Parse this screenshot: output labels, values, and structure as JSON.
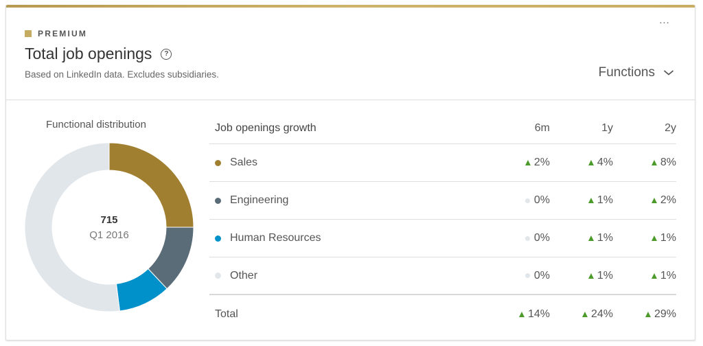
{
  "header": {
    "badge": "PREMIUM",
    "title": "Total job openings",
    "subtitle": "Based on LinkedIn data. Excludes subsidiaries.",
    "more_label": "…",
    "filter": {
      "selected": "Functions"
    }
  },
  "colors": {
    "premium_gold": "#c6ab63",
    "sales": "#a07f31",
    "engineering": "#5b6c79",
    "human_resources": "#0091ca",
    "other": "#e1e6eb",
    "growth_up": "#4c9a2a"
  },
  "distribution": {
    "title": "Functional distribution",
    "center_value": "715",
    "center_period": "Q1 2016"
  },
  "growth_table": {
    "title": "Job openings growth",
    "columns": [
      "6m",
      "1y",
      "2y"
    ],
    "rows": [
      {
        "label": "Sales",
        "dot_color": "#a07f31",
        "values": [
          {
            "text": "2%",
            "trend": "up"
          },
          {
            "text": "4%",
            "trend": "up"
          },
          {
            "text": "8%",
            "trend": "up"
          }
        ]
      },
      {
        "label": "Engineering",
        "dot_color": "#5b6c79",
        "values": [
          {
            "text": "0%",
            "trend": "flat"
          },
          {
            "text": "1%",
            "trend": "up"
          },
          {
            "text": "2%",
            "trend": "up"
          }
        ]
      },
      {
        "label": "Human Resources",
        "dot_color": "#0091ca",
        "values": [
          {
            "text": "0%",
            "trend": "flat"
          },
          {
            "text": "1%",
            "trend": "up"
          },
          {
            "text": "1%",
            "trend": "up"
          }
        ]
      },
      {
        "label": "Other",
        "dot_color": "#e1e6eb",
        "values": [
          {
            "text": "0%",
            "trend": "flat"
          },
          {
            "text": "1%",
            "trend": "up"
          },
          {
            "text": "1%",
            "trend": "up"
          }
        ]
      }
    ],
    "total": {
      "label": "Total",
      "values": [
        {
          "text": "14%",
          "trend": "up"
        },
        {
          "text": "24%",
          "trend": "up"
        },
        {
          "text": "29%",
          "trend": "up"
        }
      ]
    }
  },
  "chart_data": {
    "type": "pie",
    "title": "Functional distribution",
    "donut": true,
    "center_label": "715 Q1 2016",
    "categories": [
      "Sales",
      "Engineering",
      "Human Resources",
      "Other"
    ],
    "values": [
      25,
      13,
      10,
      52
    ],
    "units": "approx. percent of 715 openings",
    "colors": [
      "#a07f31",
      "#5b6c79",
      "#0091ca",
      "#e1e6eb"
    ],
    "start_angle": "12 o'clock, clockwise",
    "legend": "table at right"
  }
}
